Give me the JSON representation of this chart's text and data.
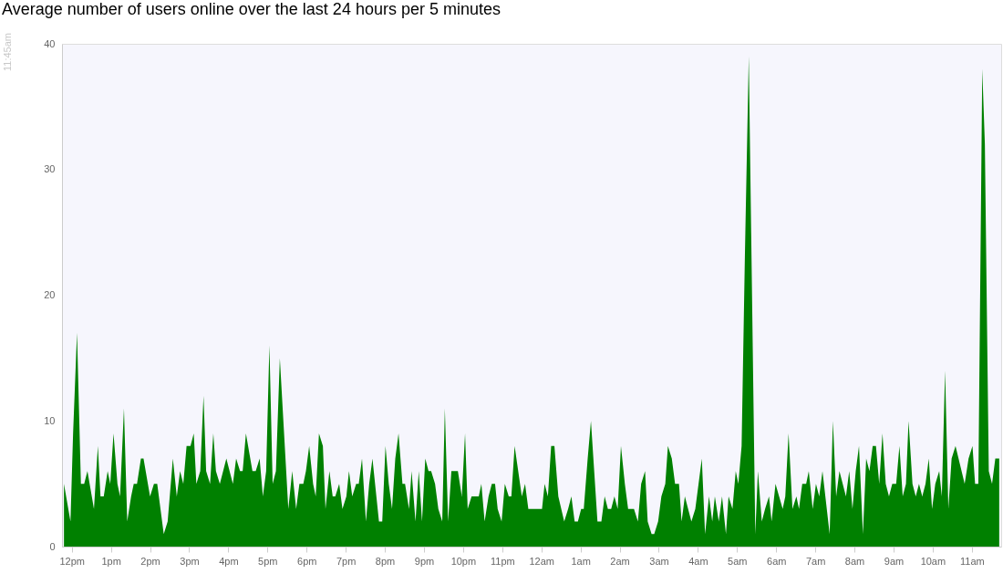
{
  "chart_data": {
    "type": "area",
    "title": "Average number of users online over the last 24 hours per 5 minutes",
    "annotations": [
      "11:45am"
    ],
    "x": [
      "--01-01T11:48",
      "--01-01T11:58",
      "--01-01T12:02",
      "--01-01T12:08",
      "--01-01T12:14",
      "--01-01T12:19",
      "--01-01T12:24",
      "--01-01T12:34",
      "--01-01T12:40",
      "--01-01T12:44",
      "--01-01T12:49",
      "--01-01T12:55",
      "--01-01T12:59",
      "--01-01T13:04",
      "--01-01T13:10",
      "--01-01T13:14",
      "--01-01T13:20",
      "--01-01T13:25",
      "--01-01T13:31",
      "--01-01T13:35",
      "--01-01T13:40",
      "--01-01T13:46",
      "--01-01T13:50",
      "--01-01T14:00",
      "--01-01T14:06",
      "--01-01T14:11",
      "--01-01T14:21",
      "--01-01T14:27",
      "--01-01T14:35",
      "--01-01T14:41",
      "--01-01T14:46",
      "--01-01T14:51",
      "--01-01T14:56",
      "--01-01T15:02",
      "--01-01T15:07",
      "--01-01T15:11",
      "--01-01T15:17",
      "--01-01T15:22",
      "--01-01T15:26",
      "--01-01T15:32",
      "--01-01T15:37",
      "--01-01T15:41",
      "--01-01T15:47",
      "--01-01T15:57",
      "--01-01T16:07",
      "--01-01T16:12",
      "--01-01T16:18",
      "--01-01T16:22",
      "--01-01T16:27",
      "--01-01T16:37",
      "--01-01T16:42",
      "--01-01T16:48",
      "--01-01T16:53",
      "--01-01T16:58",
      "--01-01T17:03",
      "--01-01T17:08",
      "--01-01T17:13",
      "--01-01T17:19",
      "--01-01T17:32",
      "--01-01T17:38",
      "--01-01T17:44",
      "--01-01T17:49",
      "--01-01T17:55",
      "--01-01T17:59",
      "--01-01T18:04",
      "--01-01T18:10",
      "--01-01T18:14",
      "--01-01T18:19",
      "--01-01T18:25",
      "--01-01T18:29",
      "--01-01T18:35",
      "--01-01T18:40",
      "--01-01T18:44",
      "--01-01T18:50",
      "--01-01T18:55",
      "--01-01T19:01",
      "--01-01T19:05",
      "--01-01T19:10",
      "--01-01T19:16",
      "--01-01T19:20",
      "--01-01T19:25",
      "--01-01T19:31",
      "--01-01T19:36",
      "--01-01T19:41",
      "--01-01T19:51",
      "--01-01T19:56",
      "--01-01T20:01",
      "--01-01T20:06",
      "--01-01T20:11",
      "--01-01T20:16",
      "--01-01T20:21",
      "--01-01T20:27",
      "--01-01T20:31",
      "--01-01T20:37",
      "--01-01T20:41",
      "--01-01T20:47",
      "--01-01T20:52",
      "--01-01T20:57",
      "--01-01T21:02",
      "--01-01T21:07",
      "--01-01T21:11",
      "--01-01T21:17",
      "--01-01T21:22",
      "--01-01T21:28",
      "--01-01T21:32",
      "--01-01T21:37",
      "--01-01T21:42",
      "--01-01T21:52",
      "--01-01T21:58",
      "--01-01T22:03",
      "--01-01T22:07",
      "--01-01T22:13",
      "--01-01T22:24",
      "--01-01T22:28",
      "--01-01T22:33",
      "--01-01T22:39",
      "--01-01T22:44",
      "--01-01T22:49",
      "--01-01T22:53",
      "--01-01T22:59",
      "--01-01T23:04",
      "--01-01T23:10",
      "--01-01T23:14",
      "--01-01T23:19",
      "--01-01T23:30",
      "--01-01T23:35",
      "--01-01T23:40",
      "--01-02T00:01",
      "--01-02T00:05",
      "--01-02T00:10",
      "--01-02T00:15",
      "--01-02T00:20",
      "--01-02T00:26",
      "--01-02T00:35",
      "--01-02T00:41",
      "--01-02T00:46",
      "--01-02T00:51",
      "--01-02T00:56",
      "--01-02T01:01",
      "--01-02T01:05",
      "--01-02T01:11",
      "--01-02T01:16",
      "--01-02T01:26",
      "--01-02T01:32",
      "--01-02T01:37",
      "--01-02T01:42",
      "--01-02T01:47",
      "--01-02T01:52",
      "--01-02T01:57",
      "--01-02T02:02",
      "--01-02T02:08",
      "--01-02T02:13",
      "--01-02T02:22",
      "--01-02T02:28",
      "--01-02T02:33",
      "--01-02T02:39",
      "--01-02T02:43",
      "--01-02T02:49",
      "--01-02T02:53",
      "--01-02T02:59",
      "--01-02T03:04",
      "--01-02T03:10",
      "--01-02T03:14",
      "--01-02T03:20",
      "--01-02T03:25",
      "--01-02T03:31",
      "--01-02T03:35",
      "--01-02T03:40",
      "--01-02T03:50",
      "--01-02T03:56",
      "--01-02T04:01",
      "--01-02T04:06",
      "--01-02T04:11",
      "--01-02T04:17",
      "--01-02T04:22",
      "--01-02T04:26",
      "--01-02T04:32",
      "--01-02T04:37",
      "--01-02T04:43",
      "--01-02T04:47",
      "--01-02T04:53",
      "--01-02T04:58",
      "--01-02T05:02",
      "--01-02T05:07",
      "--01-02T05:12",
      "--01-02T05:18",
      "--01-02T05:28",
      "--01-02T05:32",
      "--01-02T05:38",
      "--01-02T05:43",
      "--01-02T05:49",
      "--01-02T05:53",
      "--01-02T05:59",
      "--01-02T06:10",
      "--01-02T06:14",
      "--01-02T06:19",
      "--01-02T06:25",
      "--01-02T06:31",
      "--01-02T06:35",
      "--01-02T06:40",
      "--01-02T06:46",
      "--01-02T06:50",
      "--01-02T06:56",
      "--01-02T07:01",
      "--01-02T07:06",
      "--01-02T07:11",
      "--01-02T07:22",
      "--01-02T07:27",
      "--01-02T07:32",
      "--01-02T07:37",
      "--01-02T07:47",
      "--01-02T07:52",
      "--01-02T07:57",
      "--01-02T08:02",
      "--01-02T08:07",
      "--01-02T08:13",
      "--01-02T08:18",
      "--01-02T08:23",
      "--01-02T08:28",
      "--01-02T08:33",
      "--01-02T08:38",
      "--01-02T08:43",
      "--01-02T08:48",
      "--01-02T08:53",
      "--01-02T08:58",
      "--01-02T09:04",
      "--01-02T09:09",
      "--01-02T09:14",
      "--01-02T09:19",
      "--01-02T09:23",
      "--01-02T09:29",
      "--01-02T09:34",
      "--01-02T09:39",
      "--01-02T09:44",
      "--01-02T09:49",
      "--01-02T09:54",
      "--01-02T09:59",
      "--01-02T10:04",
      "--01-02T10:10",
      "--01-02T10:14",
      "--01-02T10:19",
      "--01-02T10:24",
      "--01-02T10:29",
      "--01-02T10:35",
      "--01-02T10:49",
      "--01-02T10:55",
      "--01-02T11:01",
      "--01-02T11:05",
      "--01-02T11:10",
      "--01-02T11:16",
      "--01-02T11:20",
      "--01-02T11:26",
      "--01-02T11:31",
      "--01-02T11:36",
      "--01-02T11:42"
    ],
    "series": [
      {
        "color": "#008000",
        "values": [
          5,
          2,
          9,
          17,
          5,
          5,
          6,
          3,
          8,
          4,
          4,
          6,
          5,
          9,
          5,
          4,
          11,
          2,
          4,
          5,
          5,
          7,
          7,
          4,
          5,
          5,
          1,
          2,
          7,
          4,
          6,
          5,
          8,
          8,
          9,
          5,
          6,
          12,
          6,
          5,
          9,
          6,
          5,
          7,
          5,
          7,
          6,
          6,
          9,
          6,
          6,
          7,
          4,
          6,
          16,
          5,
          6,
          15,
          3,
          6,
          3,
          5,
          5,
          6,
          8,
          5,
          4,
          9,
          8,
          3,
          6,
          4,
          4,
          5,
          3,
          4,
          6,
          4,
          5,
          5,
          7,
          2,
          5,
          7,
          2,
          2,
          8,
          5,
          3,
          7,
          9,
          5,
          5,
          3,
          6,
          2,
          6,
          2,
          7,
          6,
          6,
          5,
          3,
          2,
          11,
          2,
          6,
          6,
          4,
          9,
          3,
          4,
          4,
          5,
          2,
          4,
          5,
          5,
          3,
          2,
          5,
          4,
          4,
          8,
          4,
          5,
          3,
          3,
          5,
          4,
          8,
          8,
          4,
          2,
          3,
          4,
          2,
          2,
          3,
          3,
          7,
          10,
          2,
          2,
          4,
          3,
          3,
          4,
          3,
          8,
          5,
          3,
          3,
          2,
          5,
          6,
          2,
          1,
          1,
          2,
          4,
          5,
          8,
          7,
          5,
          5,
          2,
          4,
          2,
          3,
          5,
          7,
          1,
          4,
          2,
          4,
          2,
          4,
          1,
          4,
          3,
          6,
          5,
          8,
          23,
          39,
          1,
          6,
          2,
          3,
          4,
          2,
          5,
          3,
          4,
          9,
          3,
          4,
          3,
          5,
          5,
          6,
          3,
          5,
          4,
          6,
          1,
          10,
          4,
          6,
          4,
          6,
          3,
          6,
          8,
          1,
          7,
          6,
          8,
          8,
          5,
          9,
          5,
          4,
          5,
          5,
          8,
          4,
          5,
          10,
          5,
          4,
          5,
          4,
          5,
          7,
          3,
          5,
          6,
          4,
          14,
          3,
          7,
          8,
          5,
          7,
          8,
          5,
          5,
          38,
          32,
          6,
          5,
          7,
          7
        ]
      }
    ],
    "xlim": [
      "--01-01T11:45",
      "--01-02T11:45"
    ],
    "xticks": [
      {
        "value": "--01-01T12:00",
        "label": "12pm"
      },
      {
        "value": "--01-01T13:00",
        "label": "1pm"
      },
      {
        "value": "--01-01T14:00",
        "label": "2pm"
      },
      {
        "value": "--01-01T15:00",
        "label": "3pm"
      },
      {
        "value": "--01-01T16:00",
        "label": "4pm"
      },
      {
        "value": "--01-01T17:00",
        "label": "5pm"
      },
      {
        "value": "--01-01T18:00",
        "label": "6pm"
      },
      {
        "value": "--01-01T19:00",
        "label": "7pm"
      },
      {
        "value": "--01-01T20:00",
        "label": "8pm"
      },
      {
        "value": "--01-01T21:00",
        "label": "9pm"
      },
      {
        "value": "--01-01T22:00",
        "label": "10pm"
      },
      {
        "value": "--01-01T23:00",
        "label": "11pm"
      },
      {
        "value": "--01-02T00:00",
        "label": "12am"
      },
      {
        "value": "--01-02T01:00",
        "label": "1am"
      },
      {
        "value": "--01-02T02:00",
        "label": "2am"
      },
      {
        "value": "--01-02T03:00",
        "label": "3am"
      },
      {
        "value": "--01-02T04:00",
        "label": "4am"
      },
      {
        "value": "--01-02T05:00",
        "label": "5am"
      },
      {
        "value": "--01-02T06:00",
        "label": "6am"
      },
      {
        "value": "--01-02T07:00",
        "label": "7am"
      },
      {
        "value": "--01-02T08:00",
        "label": "8am"
      },
      {
        "value": "--01-02T09:00",
        "label": "9am"
      },
      {
        "value": "--01-02T10:00",
        "label": "10am"
      },
      {
        "value": "--01-02T11:00",
        "label": "11am"
      }
    ],
    "ylim": [
      0,
      40
    ],
    "yticks": [
      0,
      10,
      20,
      30,
      40
    ],
    "grid": false
  }
}
